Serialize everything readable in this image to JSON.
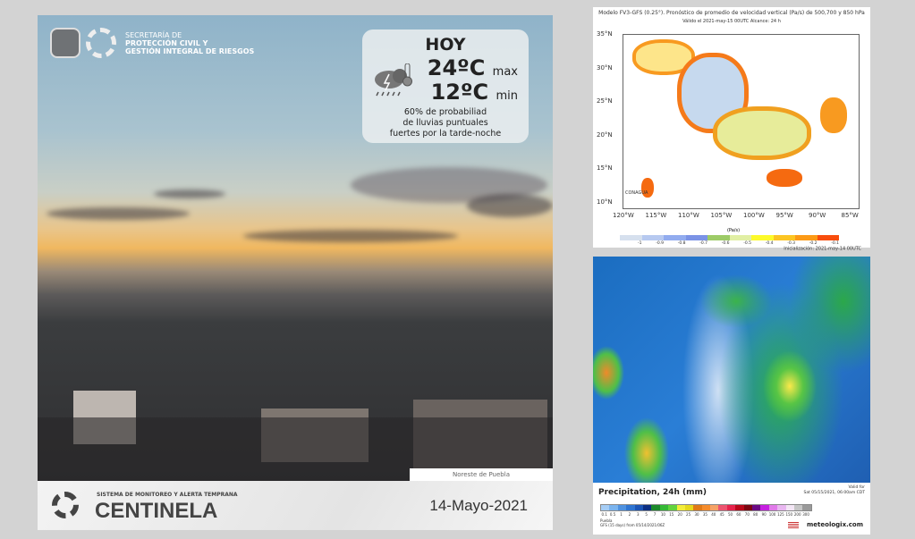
{
  "post": {
    "org_lines": [
      "SECRETARÍA DE",
      "PROTECCIÓN CIVIL Y",
      "GESTIÓN INTEGRAL DE RIESGOS"
    ],
    "forecast": {
      "day": "HOY",
      "max_temp": "24ºC",
      "max_label": "max",
      "min_temp": "12ºC",
      "min_label": "min",
      "icon": "storm-rain-uv-icon",
      "description_lines": [
        "60% de probabiliad",
        "de lluvias puntuales",
        "fuertes por la tarde-noche"
      ]
    },
    "photo_caption": "Noreste de Puebla",
    "footer": {
      "system": "SISTEMA DE MONITOREO Y ALERTA TEMPRANA",
      "brand": "CENTINELA",
      "date": "14-Mayo-2021"
    }
  },
  "map_vertical_velocity": {
    "title": "Modelo FV3-GFS (0.25°). Pronóstico de promedio de velocidad vertical (Pa/s) de 500,700 y 850 hPa",
    "subtitle": "Válido el 2021-may-15 00UTC    Alcance: 24 h",
    "lat_labels": [
      "35°N",
      "30°N",
      "25°N",
      "20°N",
      "15°N",
      "10°N"
    ],
    "lon_labels": [
      "120°W",
      "115°W",
      "110°W",
      "105°W",
      "100°W",
      "95°W",
      "90°W",
      "85°W"
    ],
    "unit": "(Pa/s)",
    "scale_ticks": [
      "-1",
      "-0.9",
      "-0.8",
      "-0.7",
      "-0.6",
      "-0.5",
      "-0.4",
      "-0.3",
      "-0.2",
      "-0.1"
    ],
    "scale_colors": [
      "#d6e0ee",
      "#b7c9f0",
      "#92acef",
      "#7b93e6",
      "#9dcb67",
      "#e1efa4",
      "#fdfa2a",
      "#fcc523",
      "#fc9a16",
      "#f84d0d",
      "#ffffff"
    ],
    "logo": "CONAGUA",
    "init": "Inicialización: 2021-may-14 00UTC"
  },
  "map_precipitation": {
    "title": "Precipitation, 24h (mm)",
    "valid_lines": [
      "Valid for",
      "Sat 05/15/2021, 06:00am CDT"
    ],
    "scale_ticks": [
      "0.1",
      "0.5",
      "1",
      "2",
      "3",
      "5",
      "7",
      "10",
      "15",
      "20",
      "25",
      "30",
      "35",
      "40",
      "45",
      "50",
      "60",
      "70",
      "80",
      "90",
      "100",
      "125",
      "150",
      "200",
      "300"
    ],
    "scale_colors": [
      "#a6cdf5",
      "#7bb4ee",
      "#4f92e0",
      "#2f75d1",
      "#1c55b5",
      "#0c2f83",
      "#1c8a2b",
      "#35b936",
      "#63d33d",
      "#f3ec3a",
      "#e6d81c",
      "#e07a16",
      "#f58c2c",
      "#f5a266",
      "#ec5470",
      "#e6234c",
      "#b8081a",
      "#7c0510",
      "#6a0a84",
      "#c520e0",
      "#e07ae9",
      "#e8b6f0",
      "#f3e6f5",
      "#c6c6c6",
      "#9a9a9a"
    ],
    "location": "Puebla",
    "model": "GFS (15 days) from 05/14/2021/06Z",
    "brand": "meteologix.com"
  }
}
